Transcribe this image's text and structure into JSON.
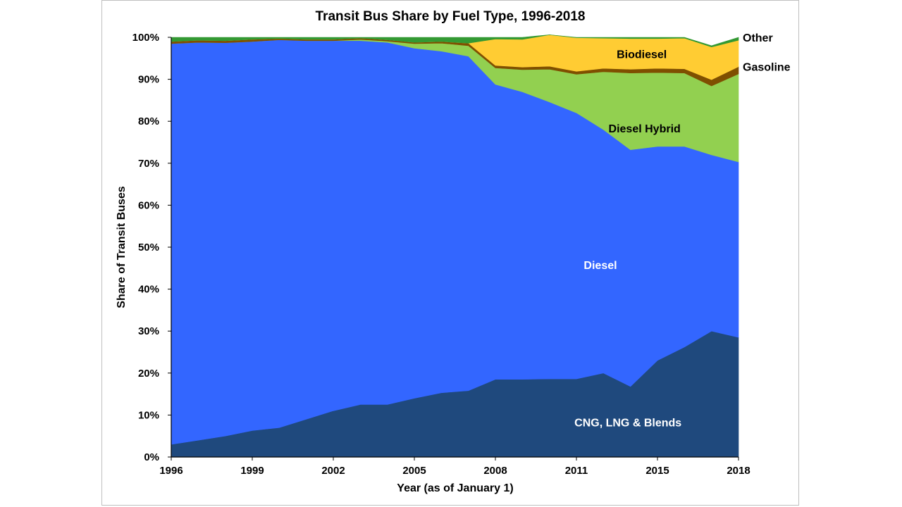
{
  "chart_data": {
    "type": "area",
    "stacked": true,
    "title": "Transit Bus Share by Fuel Type, 1996-2018",
    "xlabel": "Year (as of January 1)",
    "ylabel": "Share of Transit Buses",
    "ylim": [
      0,
      100
    ],
    "y_tick_labels": [
      "0%",
      "10%",
      "20%",
      "30%",
      "40%",
      "50%",
      "60%",
      "70%",
      "80%",
      "90%",
      "100%"
    ],
    "x_tick_labels": [
      "1996",
      "1999",
      "2002",
      "2005",
      "2008",
      "2011",
      "2015",
      "2018"
    ],
    "x_tick_positions": [
      1996,
      1999,
      2002,
      2005,
      2008,
      2011,
      2014,
      2017
    ],
    "x": [
      1996,
      1997,
      1998,
      1999,
      2000,
      2001,
      2002,
      2003,
      2004,
      2005,
      2006,
      2007,
      2008,
      2009,
      2010,
      2011,
      2012,
      2013,
      2014,
      2015,
      2016,
      2017
    ],
    "series": [
      {
        "name": "CNG, LNG & Blends",
        "color": "#1f497d",
        "label_color": "#ffffff",
        "values": [
          3,
          4,
          5,
          6.3,
          7,
          9,
          11,
          12.5,
          12.5,
          14,
          15.3,
          15.8,
          18.5,
          18.5,
          18.6,
          18.6,
          20,
          16.8,
          23,
          26.2,
          30,
          28.5
        ]
      },
      {
        "name": "Diesel",
        "color": "#3366ff",
        "label_color": "#ffffff",
        "values": [
          95.5,
          94.8,
          93.7,
          92.7,
          92.4,
          90.2,
          88.2,
          86.7,
          86.3,
          83.4,
          81.4,
          79.7,
          70.3,
          68.5,
          66,
          63.4,
          58,
          56.4,
          51,
          47.8,
          42,
          41.8
        ]
      },
      {
        "name": "Diesel Hybrid",
        "color": "#92d050",
        "label_color": "#000000",
        "values": [
          0,
          0,
          0,
          0,
          0,
          0,
          0,
          0.3,
          0.3,
          1.1,
          1.9,
          2.5,
          3.9,
          5.3,
          7.8,
          9.2,
          13.8,
          18.3,
          17.6,
          17.5,
          16.4,
          21
        ]
      },
      {
        "name": "Gasoline",
        "color": "#7f4f00",
        "label_color": "#000000",
        "values": [
          0.5,
          0.5,
          0.5,
          0.5,
          0.3,
          0.3,
          0.3,
          0.3,
          0.3,
          0.3,
          0.4,
          0.6,
          0.6,
          0.6,
          0.7,
          0.7,
          0.8,
          0.9,
          1,
          1,
          1.5,
          1.7
        ]
      },
      {
        "name": "Biodiesel",
        "color": "#ffcc33",
        "label_color": "#000000",
        "values": [
          0,
          0,
          0,
          0,
          0,
          0,
          0,
          0,
          0,
          0,
          0,
          0,
          6.3,
          6.6,
          7.5,
          8,
          7.2,
          7.3,
          7.1,
          7.3,
          7.8,
          6.3
        ]
      },
      {
        "name": "Other",
        "color": "#339933",
        "label_color": "#000000",
        "values": [
          1,
          0.7,
          0.8,
          0.5,
          0.3,
          0.5,
          0.5,
          0.2,
          0.6,
          1.2,
          1,
          1.4,
          0.4,
          0.5,
          0,
          0.1,
          0.2,
          0.3,
          0.3,
          0.2,
          0.3,
          0.7
        ]
      }
    ]
  }
}
